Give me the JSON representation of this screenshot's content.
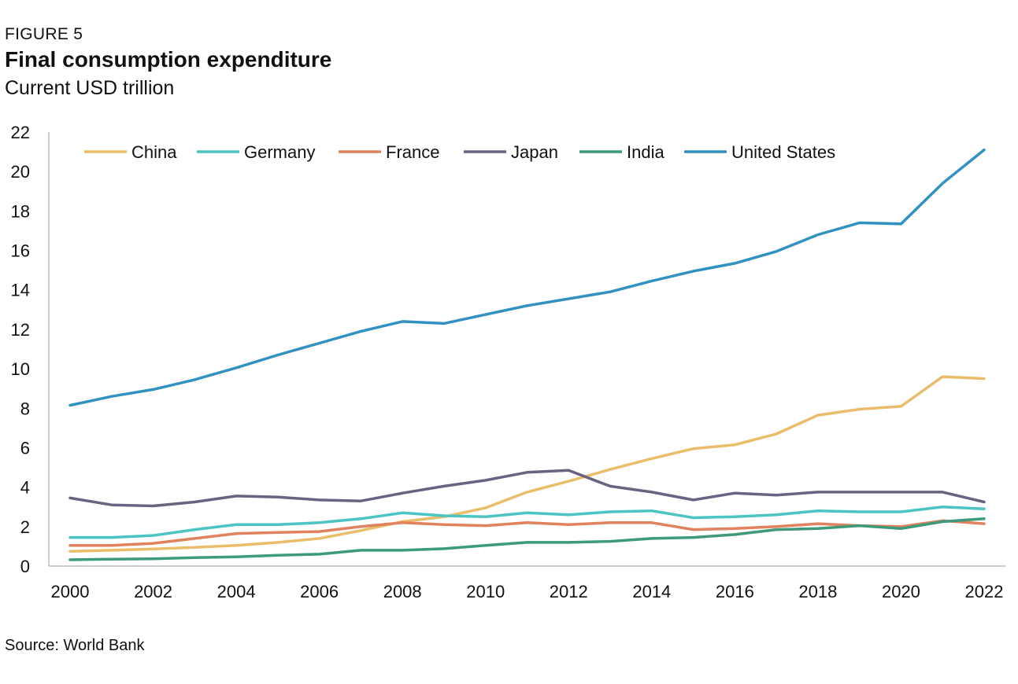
{
  "header": {
    "figure_label": "FIGURE 5",
    "title": "Final consumption expenditure",
    "subtitle": "Current USD trillion"
  },
  "footer": {
    "source": "Source: World Bank"
  },
  "chart_data": {
    "type": "line",
    "title": "Final consumption expenditure",
    "subtitle": "Current USD trillion",
    "xlabel": "",
    "ylabel": "",
    "x": [
      2000,
      2001,
      2002,
      2003,
      2004,
      2005,
      2006,
      2007,
      2008,
      2009,
      2010,
      2011,
      2012,
      2013,
      2014,
      2015,
      2016,
      2017,
      2018,
      2019,
      2020,
      2021,
      2022
    ],
    "xlim": [
      2000,
      2022
    ],
    "ylim": [
      0,
      22
    ],
    "xticks": [
      "2000",
      "2002",
      "2004",
      "2006",
      "2008",
      "2010",
      "2012",
      "2014",
      "2016",
      "2018",
      "2020",
      "2022"
    ],
    "yticks": [
      "0",
      "2",
      "4",
      "6",
      "8",
      "10",
      "12",
      "14",
      "16",
      "18",
      "20",
      "22"
    ],
    "grid": false,
    "legend_position": "top",
    "series": [
      {
        "name": "China",
        "color": "#e9bd6a",
        "values": [
          0.75,
          0.8,
          0.87,
          0.95,
          1.05,
          1.2,
          1.4,
          1.8,
          2.25,
          2.5,
          2.95,
          3.75,
          4.3,
          4.9,
          5.45,
          5.95,
          6.15,
          6.7,
          7.65,
          7.95,
          8.1,
          9.6,
          9.5
        ]
      },
      {
        "name": "Germany",
        "color": "#4cc4c4",
        "values": [
          1.45,
          1.45,
          1.55,
          1.85,
          2.1,
          2.1,
          2.2,
          2.4,
          2.7,
          2.55,
          2.5,
          2.7,
          2.6,
          2.75,
          2.8,
          2.45,
          2.5,
          2.6,
          2.8,
          2.75,
          2.75,
          3.0,
          2.9
        ]
      },
      {
        "name": "France",
        "color": "#e0825e",
        "values": [
          1.05,
          1.05,
          1.15,
          1.4,
          1.65,
          1.7,
          1.75,
          2.0,
          2.2,
          2.1,
          2.05,
          2.2,
          2.1,
          2.2,
          2.2,
          1.85,
          1.9,
          2.0,
          2.15,
          2.05,
          2.0,
          2.3,
          2.15
        ]
      },
      {
        "name": "Japan",
        "color": "#6b6180",
        "values": [
          3.45,
          3.1,
          3.05,
          3.25,
          3.55,
          3.5,
          3.35,
          3.3,
          3.7,
          4.05,
          4.35,
          4.75,
          4.85,
          4.05,
          3.75,
          3.35,
          3.7,
          3.6,
          3.75,
          3.75,
          3.75,
          3.75,
          3.25
        ]
      },
      {
        "name": "India",
        "color": "#3d9a7a",
        "values": [
          0.32,
          0.35,
          0.37,
          0.43,
          0.47,
          0.55,
          0.6,
          0.8,
          0.8,
          0.88,
          1.05,
          1.2,
          1.2,
          1.25,
          1.4,
          1.45,
          1.6,
          1.85,
          1.9,
          2.05,
          1.9,
          2.25,
          2.4
        ]
      },
      {
        "name": "United States",
        "color": "#3192c2",
        "values": [
          8.15,
          8.6,
          8.95,
          9.45,
          10.05,
          10.7,
          11.3,
          11.9,
          12.4,
          12.3,
          12.75,
          13.2,
          13.55,
          13.9,
          14.45,
          14.95,
          15.35,
          15.95,
          16.8,
          17.4,
          17.35,
          19.4,
          21.1
        ]
      }
    ]
  }
}
